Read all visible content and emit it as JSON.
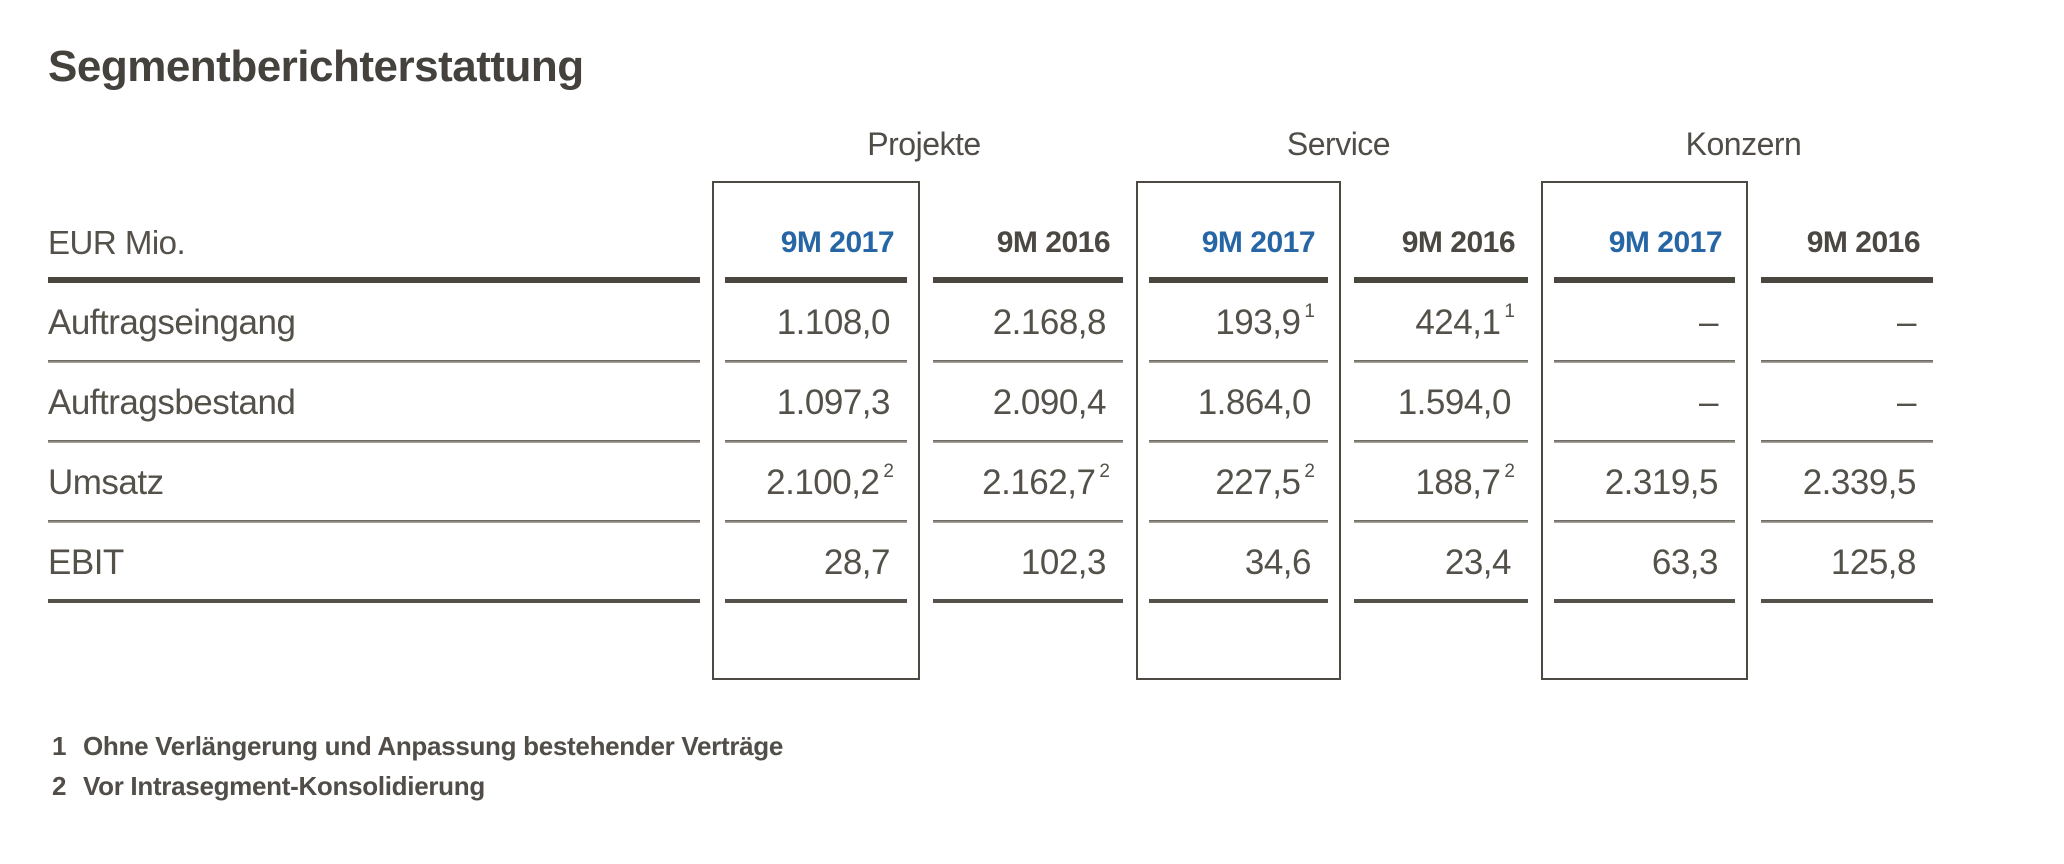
{
  "title": "Segmentberichterstattung",
  "unit_label": "EUR Mio.",
  "colors": {
    "accent_blue": "#2766a5",
    "text_gray": "#54504a",
    "rule_dark": "#4a4640",
    "rule_light": "#a5a29c",
    "box_border": "#4d4a44"
  },
  "groups": [
    {
      "label": "Projekte"
    },
    {
      "label": "Service"
    },
    {
      "label": "Konzern"
    }
  ],
  "columns": [
    {
      "label": "9M 2017",
      "group": "Projekte",
      "highlight": true
    },
    {
      "label": "9M 2016",
      "group": "Projekte",
      "highlight": false
    },
    {
      "label": "9M 2017",
      "group": "Service",
      "highlight": true
    },
    {
      "label": "9M 2016",
      "group": "Service",
      "highlight": false
    },
    {
      "label": "9M 2017",
      "group": "Konzern",
      "highlight": true
    },
    {
      "label": "9M 2016",
      "group": "Konzern",
      "highlight": false
    }
  ],
  "rows": [
    {
      "label": "Auftragseingang",
      "cells": [
        {
          "v": "1.108,0"
        },
        {
          "v": "2.168,8"
        },
        {
          "v": "193,9",
          "sup": "1"
        },
        {
          "v": "424,1",
          "sup": "1"
        },
        {
          "v": "–"
        },
        {
          "v": "–"
        }
      ]
    },
    {
      "label": "Auftragsbestand",
      "cells": [
        {
          "v": "1.097,3"
        },
        {
          "v": "2.090,4"
        },
        {
          "v": "1.864,0"
        },
        {
          "v": "1.594,0"
        },
        {
          "v": "–"
        },
        {
          "v": "–"
        }
      ]
    },
    {
      "label": "Umsatz",
      "cells": [
        {
          "v": "2.100,2",
          "sup": "2"
        },
        {
          "v": "2.162,7",
          "sup": "2"
        },
        {
          "v": "227,5",
          "sup": "2"
        },
        {
          "v": "188,7",
          "sup": "2"
        },
        {
          "v": "2.319,5"
        },
        {
          "v": "2.339,5"
        }
      ]
    },
    {
      "label": "EBIT",
      "cells": [
        {
          "v": "28,7"
        },
        {
          "v": "102,3"
        },
        {
          "v": "34,6"
        },
        {
          "v": "23,4"
        },
        {
          "v": "63,3"
        },
        {
          "v": "125,8"
        }
      ]
    }
  ],
  "footnotes": [
    {
      "num": "1",
      "text": "Ohne Verlängerung und Anpassung bestehender Verträge"
    },
    {
      "num": "2",
      "text": "Vor Intrasegment-Konsolidierung"
    }
  ]
}
